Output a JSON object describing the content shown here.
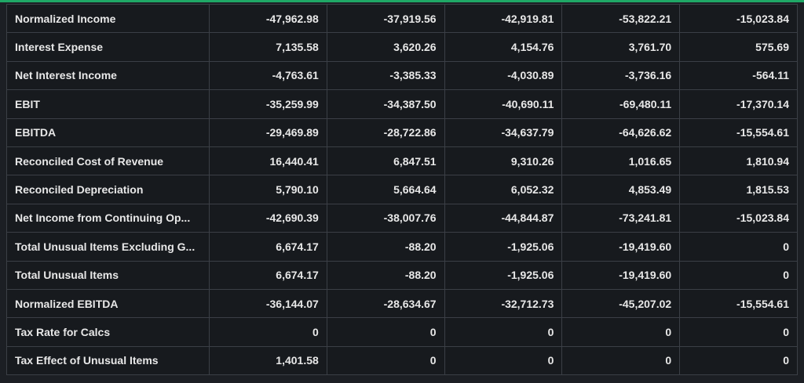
{
  "table": {
    "rows": [
      [
        "Normalized Income",
        "-47,962.98",
        "-37,919.56",
        "-42,919.81",
        "-53,822.21",
        "-15,023.84"
      ],
      [
        "Interest Expense",
        "7,135.58",
        "3,620.26",
        "4,154.76",
        "3,761.70",
        "575.69"
      ],
      [
        "Net Interest Income",
        "-4,763.61",
        "-3,385.33",
        "-4,030.89",
        "-3,736.16",
        "-564.11"
      ],
      [
        "EBIT",
        "-35,259.99",
        "-34,387.50",
        "-40,690.11",
        "-69,480.11",
        "-17,370.14"
      ],
      [
        "EBITDA",
        "-29,469.89",
        "-28,722.86",
        "-34,637.79",
        "-64,626.62",
        "-15,554.61"
      ],
      [
        "Reconciled Cost of Revenue",
        "16,440.41",
        "6,847.51",
        "9,310.26",
        "1,016.65",
        "1,810.94"
      ],
      [
        "Reconciled Depreciation",
        "5,790.10",
        "5,664.64",
        "6,052.32",
        "4,853.49",
        "1,815.53"
      ],
      [
        "Net Income from Continuing Op...",
        "-42,690.39",
        "-38,007.76",
        "-44,844.87",
        "-73,241.81",
        "-15,023.84"
      ],
      [
        "Total Unusual Items Excluding G...",
        "6,674.17",
        "-88.20",
        "-1,925.06",
        "-19,419.60",
        "0"
      ],
      [
        "Total Unusual Items",
        "6,674.17",
        "-88.20",
        "-1,925.06",
        "-19,419.60",
        "0"
      ],
      [
        "Normalized EBITDA",
        "-36,144.07",
        "-28,634.67",
        "-32,712.73",
        "-45,207.02",
        "-15,554.61"
      ],
      [
        "Tax Rate for Calcs",
        "0",
        "0",
        "0",
        "0",
        "0"
      ],
      [
        "Tax Effect of Unusual Items",
        "1,401.58",
        "0",
        "0",
        "0",
        "0"
      ]
    ]
  }
}
